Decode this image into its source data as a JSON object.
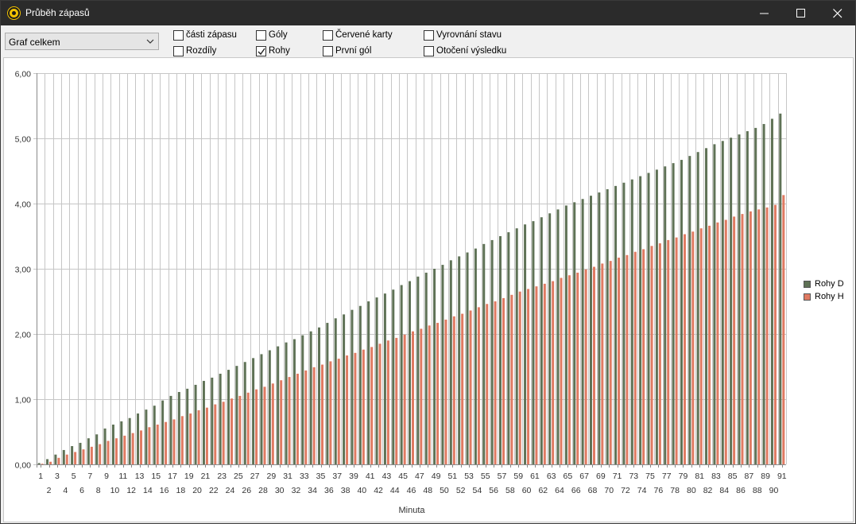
{
  "window": {
    "title": "Průběh zápasů",
    "icon": "football-icon"
  },
  "toolbar": {
    "view_select_value": "Graf celkem",
    "checkboxes": {
      "casti_zapasu": {
        "label": "části zápasu",
        "checked": false
      },
      "rozdily": {
        "label": "Rozdíly",
        "checked": false
      },
      "goly": {
        "label": "Góly",
        "checked": false
      },
      "rohy": {
        "label": "Rohy",
        "checked": true
      },
      "cervene_karty": {
        "label": "Červené karty",
        "checked": false
      },
      "prvni_gol": {
        "label": "První gól",
        "checked": false
      },
      "vyrovnani_stavu": {
        "label": "Vyrovnání stavu",
        "checked": false
      },
      "otoceni_vysledku": {
        "label": "Otočení výsledku",
        "checked": false
      }
    }
  },
  "chart_data": {
    "type": "bar",
    "title": "",
    "xlabel": "Minuta",
    "ylabel": "",
    "ylim": [
      0,
      6
    ],
    "y_ticks": [
      "0,00",
      "1,00",
      "2,00",
      "3,00",
      "4,00",
      "5,00",
      "6,00"
    ],
    "grid": true,
    "legend_position": "right",
    "categories": [
      1,
      2,
      3,
      4,
      5,
      6,
      7,
      8,
      9,
      10,
      11,
      12,
      13,
      14,
      15,
      16,
      17,
      18,
      19,
      20,
      21,
      22,
      23,
      24,
      25,
      26,
      27,
      28,
      29,
      30,
      31,
      32,
      33,
      34,
      35,
      36,
      37,
      38,
      39,
      40,
      41,
      42,
      43,
      44,
      45,
      46,
      47,
      48,
      49,
      50,
      51,
      52,
      53,
      54,
      55,
      56,
      57,
      58,
      59,
      60,
      61,
      62,
      63,
      64,
      65,
      66,
      67,
      68,
      69,
      70,
      71,
      72,
      73,
      74,
      75,
      76,
      77,
      78,
      79,
      80,
      81,
      82,
      83,
      84,
      85,
      86,
      87,
      88,
      89,
      90,
      91
    ],
    "series": [
      {
        "name": "Rohy D",
        "color": "#5f7256",
        "values": [
          0.02,
          0.08,
          0.15,
          0.22,
          0.28,
          0.33,
          0.4,
          0.46,
          0.55,
          0.61,
          0.66,
          0.71,
          0.78,
          0.84,
          0.9,
          0.98,
          1.05,
          1.11,
          1.16,
          1.22,
          1.28,
          1.33,
          1.39,
          1.45,
          1.51,
          1.57,
          1.63,
          1.69,
          1.75,
          1.81,
          1.87,
          1.92,
          1.98,
          2.04,
          2.1,
          2.17,
          2.24,
          2.3,
          2.37,
          2.43,
          2.5,
          2.56,
          2.62,
          2.68,
          2.75,
          2.81,
          2.88,
          2.94,
          3.0,
          3.06,
          3.13,
          3.19,
          3.25,
          3.31,
          3.38,
          3.44,
          3.5,
          3.56,
          3.62,
          3.68,
          3.73,
          3.79,
          3.85,
          3.91,
          3.97,
          4.02,
          4.07,
          4.12,
          4.17,
          4.22,
          4.27,
          4.32,
          4.37,
          4.42,
          4.47,
          4.52,
          4.57,
          4.62,
          4.67,
          4.73,
          4.79,
          4.85,
          4.91,
          4.96,
          5.01,
          5.06,
          5.11,
          5.16,
          5.22,
          5.3,
          5.38
        ]
      },
      {
        "name": "Rohy H",
        "color": "#e07a62",
        "values": [
          0.01,
          0.04,
          0.1,
          0.15,
          0.19,
          0.23,
          0.27,
          0.31,
          0.36,
          0.4,
          0.44,
          0.48,
          0.52,
          0.57,
          0.61,
          0.65,
          0.69,
          0.74,
          0.78,
          0.83,
          0.87,
          0.92,
          0.96,
          1.01,
          1.05,
          1.1,
          1.15,
          1.19,
          1.24,
          1.29,
          1.34,
          1.39,
          1.44,
          1.49,
          1.53,
          1.58,
          1.62,
          1.67,
          1.71,
          1.76,
          1.8,
          1.85,
          1.9,
          1.94,
          1.99,
          2.04,
          2.08,
          2.13,
          2.17,
          2.22,
          2.27,
          2.31,
          2.36,
          2.41,
          2.46,
          2.5,
          2.55,
          2.6,
          2.65,
          2.69,
          2.73,
          2.77,
          2.81,
          2.86,
          2.9,
          2.94,
          2.99,
          3.03,
          3.08,
          3.12,
          3.17,
          3.21,
          3.26,
          3.3,
          3.35,
          3.39,
          3.44,
          3.48,
          3.53,
          3.57,
          3.62,
          3.66,
          3.71,
          3.75,
          3.8,
          3.84,
          3.88,
          3.91,
          3.94,
          3.98,
          4.13
        ]
      }
    ]
  }
}
